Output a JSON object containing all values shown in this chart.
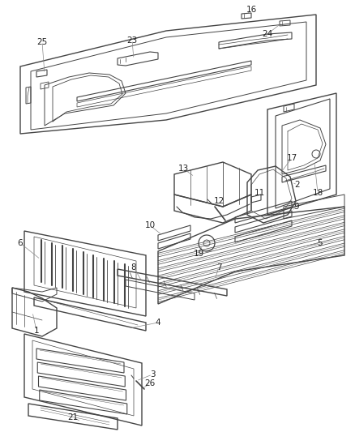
{
  "bg": "#ffffff",
  "lc": "#444444",
  "lc_light": "#888888",
  "lc_thin": "#999999",
  "label_fs": 7.5,
  "label_color": "#222222",
  "figw": 4.38,
  "figh": 5.33,
  "dpi": 100
}
